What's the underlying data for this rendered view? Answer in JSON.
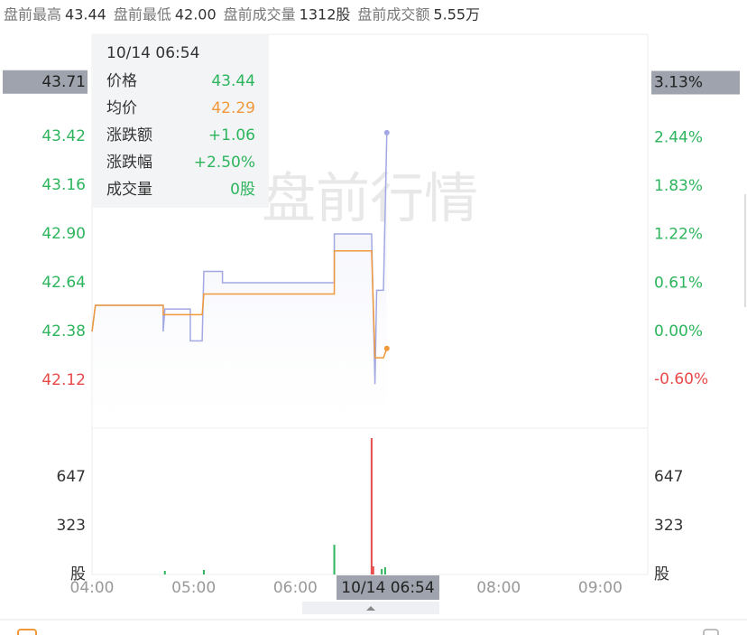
{
  "header": [
    {
      "label": "盘前最高",
      "value": "43.44"
    },
    {
      "label": "盘前最低",
      "value": "42.00"
    },
    {
      "label": "盘前成交量",
      "value": "1312股"
    },
    {
      "label": "盘前成交额",
      "value": "5.55万"
    }
  ],
  "chart_data": [
    {
      "type": "line",
      "watermark": "盘前行情",
      "x": [
        "04:00",
        "04:02",
        "04:42",
        "04:42",
        "04:43",
        "04:58",
        "04:58",
        "05:05",
        "05:06",
        "05:17",
        "05:17",
        "06:23",
        "06:23",
        "06:45",
        "06:47",
        "06:48",
        "06:52",
        "06:54"
      ],
      "series": [
        {
          "color": "#a3a8e3",
          "values": [
            42.38,
            42.52,
            42.52,
            42.38,
            42.5,
            42.5,
            42.33,
            42.33,
            42.7,
            42.7,
            42.64,
            42.64,
            42.9,
            42.9,
            42.1,
            42.6,
            42.6,
            43.44
          ]
        },
        {
          "color": "#f0993a",
          "values": [
            42.38,
            42.52,
            42.52,
            42.47,
            42.47,
            42.47,
            42.47,
            42.47,
            42.58,
            42.58,
            42.58,
            42.58,
            42.81,
            42.81,
            42.24,
            42.24,
            42.24,
            42.29
          ]
        }
      ],
      "xlim": [
        "04:00",
        "09:28"
      ],
      "xticks": [
        "04:00",
        "05:00",
        "06:00",
        "08:00",
        "09:00"
      ],
      "ylim": [
        41.865,
        43.964
      ],
      "yticks": [
        43.42,
        43.16,
        {
          "value": 42.9,
          "label": "42.90"
        },
        42.64,
        42.38,
        42.12
      ],
      "y2lim": [
        -1.215,
        3.738
      ],
      "y2ticks": [
        {
          "value": 2.44,
          "label": "2.44%"
        },
        {
          "value": 1.83,
          "label": "1.83%"
        },
        {
          "value": 1.22,
          "label": "1.22%"
        },
        {
          "value": 0.61,
          "label": "0.61%"
        },
        {
          "value": 0,
          "label": "0.00%"
        },
        {
          "value": -0.6,
          "label": "-0.60%"
        }
      ],
      "up_color": "#2db55d",
      "down_color": "#e84a4a",
      "grid": false,
      "crosshair": {
        "time": "10/14 06:54",
        "price": 43.71,
        "percent": {
          "value": 3.13,
          "label": "3.13%"
        }
      },
      "tooltip": {
        "time": "10/14 06:54",
        "rows": [
          {
            "label": "价格",
            "value": "43.44",
            "color": "#2db55d"
          },
          {
            "label": "均价",
            "value": "42.29",
            "color": "#f0993a"
          },
          {
            "label": "涨跌额",
            "value": "+1.06",
            "color": "#2db55d"
          },
          {
            "label": "涨跌幅",
            "value": "+2.50%",
            "color": "#2db55d"
          },
          {
            "label": "成交量",
            "value": "0股",
            "color": "#2db55d"
          }
        ]
      }
    },
    {
      "type": "bar",
      "x": [
        "04:43",
        "05:06",
        "06:23",
        "06:45",
        "06:46",
        "06:51",
        "06:53"
      ],
      "values": [
        24,
        30,
        197,
        903,
        54,
        36,
        48
      ],
      "colors": [
        "#2db55d",
        "#2db55d",
        "#2db55d",
        "#e84a4a",
        "#e84a4a",
        "#2db55d",
        "#2db55d"
      ],
      "ylim": [
        0,
        969
      ],
      "yticks": [
        323,
        647
      ],
      "unit": "股"
    }
  ]
}
